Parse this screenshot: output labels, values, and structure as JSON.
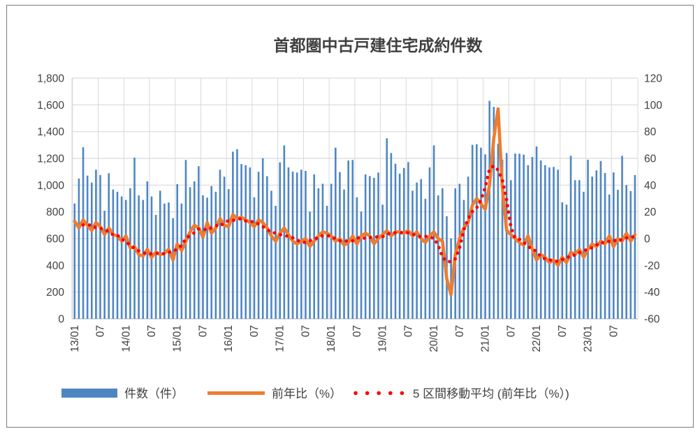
{
  "colors": {
    "bar": "#4E86C4",
    "line": "#ED7D31",
    "dots": "#FF0000",
    "axis_text": "#404040",
    "negative_tick": "#FF0000",
    "gridline": "#D9D9D9",
    "axis_line": "#BFBFBF",
    "border": "#898989",
    "background": "#FFFFFF"
  },
  "chart_data": {
    "type": "combo",
    "title": "首都圏中古戸建住宅成約件数",
    "grid": true,
    "legend_position": "bottom",
    "categories": [
      "13/01",
      "13/02",
      "13/03",
      "13/04",
      "13/05",
      "13/06",
      "13/07",
      "13/08",
      "13/09",
      "13/10",
      "13/11",
      "13/12",
      "14/01",
      "14/02",
      "14/03",
      "14/04",
      "14/05",
      "14/06",
      "14/07",
      "14/08",
      "14/09",
      "14/10",
      "14/11",
      "14/12",
      "15/01",
      "15/02",
      "15/03",
      "15/04",
      "15/05",
      "15/06",
      "15/07",
      "15/08",
      "15/09",
      "15/10",
      "15/11",
      "15/12",
      "16/01",
      "16/02",
      "16/03",
      "16/04",
      "16/05",
      "16/06",
      "16/07",
      "16/08",
      "16/09",
      "16/10",
      "16/11",
      "16/12",
      "17/01",
      "17/02",
      "17/03",
      "17/04",
      "17/05",
      "17/06",
      "17/07",
      "17/08",
      "17/09",
      "17/10",
      "17/11",
      "17/12",
      "18/01",
      "18/02",
      "18/03",
      "18/04",
      "18/05",
      "18/06",
      "18/07",
      "18/08",
      "18/09",
      "18/10",
      "18/11",
      "18/12",
      "19/01",
      "19/02",
      "19/03",
      "19/04",
      "19/05",
      "19/06",
      "19/07",
      "19/08",
      "19/09",
      "19/10",
      "19/11",
      "19/12",
      "20/01",
      "20/02",
      "20/03",
      "20/04",
      "20/05",
      "20/06",
      "20/07",
      "20/08",
      "20/09",
      "20/10",
      "20/11",
      "20/12",
      "21/01",
      "21/02",
      "21/03",
      "21/04",
      "21/05",
      "21/06",
      "21/07",
      "21/08",
      "21/09",
      "21/10",
      "21/11",
      "21/12",
      "22/01",
      "22/02",
      "22/03",
      "22/04",
      "22/05",
      "22/06",
      "22/07",
      "22/08",
      "22/09",
      "22/10",
      "22/11",
      "22/12",
      "23/01",
      "23/02",
      "23/03",
      "23/04",
      "23/05",
      "23/06",
      "23/07",
      "23/08",
      "23/09",
      "23/10",
      "23/11",
      "23/12"
    ],
    "x_tick_labels": [
      "13/01",
      "07",
      "14/01",
      "07",
      "15/01",
      "07",
      "16/01",
      "07",
      "17/01",
      "07",
      "18/01",
      "07",
      "19/01",
      "07",
      "20/01",
      "07",
      "21/01",
      "07",
      "22/01",
      "07",
      "23/01",
      "07"
    ],
    "x_tick_every": 6,
    "series": [
      {
        "name": "件数（件）",
        "type": "bar",
        "axis": "left",
        "values": [
          862,
          1049,
          1283,
          1071,
          1019,
          1115,
          1075,
          808,
          1089,
          967,
          950,
          915,
          889,
          976,
          1205,
          923,
          889,
          1028,
          915,
          777,
          958,
          862,
          870,
          753,
          1007,
          862,
          1188,
          984,
          1028,
          1141,
          923,
          906,
          993,
          950,
          1115,
          1063,
          970,
          1250,
          1268,
          1158,
          1149,
          1132,
          909,
          1100,
          1201,
          1066,
          958,
          845,
          1170,
          1297,
          1132,
          1101,
          1094,
          1115,
          1106,
          802,
          1080,
          976,
          1010,
          845,
          1010,
          1280,
          1097,
          967,
          1184,
          1188,
          909,
          802,
          1080,
          1068,
          1054,
          1094,
          854,
          1350,
          1240,
          1160,
          1085,
          1128,
          1172,
          958,
          1019,
          1045,
          897,
          1132,
          1297,
          923,
          976,
          767,
          602,
          976,
          1010,
          889,
          1063,
          1301,
          1306,
          1280,
          1230,
          1630,
          1585,
          1310,
          1190,
          1240,
          1037,
          1236,
          1235,
          1228,
          1149,
          1210,
          1289,
          1184,
          1149,
          1132,
          1136,
          1115,
          871,
          854,
          1219,
          1037,
          1037,
          950,
          1190,
          1063,
          1110,
          1180,
          1090,
          930,
          1095,
          965,
          1219,
          1000,
          955,
          1075
        ]
      },
      {
        "name": "前年比（%）",
        "type": "line",
        "axis": "right",
        "values": [
          13,
          8,
          14,
          10,
          6,
          12,
          9,
          3,
          8,
          3,
          2,
          -2,
          2,
          -7,
          -6,
          -12,
          -13,
          -8,
          -14,
          -10,
          -12,
          -11,
          -8,
          -16,
          -4,
          -9,
          -2,
          5,
          10,
          8,
          1,
          12,
          4,
          8,
          15,
          10,
          9,
          18,
          15,
          16,
          14,
          12,
          9,
          14,
          12,
          8,
          2,
          -2,
          4,
          8,
          3,
          -2,
          -4,
          -2,
          0,
          -6,
          -2,
          2,
          5,
          4,
          2,
          -2,
          0,
          -5,
          -3,
          2,
          -4,
          2,
          4,
          2,
          -4,
          0,
          3,
          6,
          2,
          5,
          5,
          4,
          6,
          2,
          5,
          0,
          -3,
          2,
          5,
          0,
          -2,
          -30,
          -42,
          -12,
          0,
          8,
          12,
          25,
          30,
          26,
          22,
          40,
          75,
          97,
          38,
          6,
          3,
          0,
          -3,
          -5,
          2,
          -8,
          -16,
          -12,
          -14,
          -18,
          -16,
          -20,
          -14,
          -18,
          -10,
          -12,
          -8,
          -14,
          -8,
          -4,
          -6,
          -2,
          -4,
          2,
          -6,
          0,
          -2,
          4,
          -2,
          3
        ]
      },
      {
        "name": "5 区間移動平均 (前年比（%）)",
        "type": "dotted-line",
        "axis": "right",
        "values": [
          null,
          null,
          10.2,
          10,
          10.2,
          8,
          7.6,
          7,
          5,
          2.8,
          2.6,
          -0.4,
          -2.2,
          -5,
          -7.2,
          -9.2,
          -10.6,
          -11.4,
          -11.4,
          -11,
          -11,
          -11.4,
          -10.2,
          -9.6,
          -7.8,
          -5.2,
          0,
          2.4,
          4.4,
          7.2,
          7,
          6.6,
          8,
          9.8,
          9.2,
          12,
          13.4,
          13.6,
          14.4,
          15,
          13.2,
          13,
          12.2,
          11,
          9,
          6.8,
          4.8,
          4,
          3,
          2.2,
          1.8,
          0.6,
          -1,
          -2.8,
          -2.8,
          -1.6,
          -0.2,
          0.6,
          2.2,
          2.2,
          1.8,
          -0.2,
          -1.6,
          -1.6,
          -2,
          -1.6,
          0.2,
          1.2,
          0,
          0.8,
          1,
          1.4,
          1.4,
          3.2,
          4.2,
          4.4,
          4.4,
          4.4,
          4.4,
          3.4,
          2,
          1.2,
          1.8,
          0.8,
          0.4,
          -5,
          -13.8,
          -17.2,
          -17.2,
          -15.2,
          -6.8,
          6.6,
          15,
          20.2,
          23,
          28.6,
          38.6,
          52,
          54.4,
          51.2,
          43.8,
          28.8,
          8.8,
          0.2,
          -0.6,
          -2.8,
          -6,
          -7.8,
          -9.6,
          -13.6,
          -15.2,
          -16,
          -16.4,
          -17.2,
          -15.6,
          -14.8,
          -12.4,
          -12.4,
          -10.4,
          -9.2,
          -8,
          -6.8,
          -4.8,
          -2.8,
          -3.2,
          -2,
          -2,
          -0.4,
          -1.2,
          0.6,
          0.8,
          1.7
        ]
      }
    ],
    "left_axis": {
      "min": 0,
      "max": 1800,
      "step": 200,
      "tick_labels": [
        "0",
        "200",
        "400",
        "600",
        "800",
        "1,000",
        "1,200",
        "1,400",
        "1,600",
        "1,800"
      ]
    },
    "right_axis": {
      "min": -60,
      "max": 120,
      "step": 20,
      "tick_labels": [
        "-60",
        "-40",
        "-20",
        "0",
        "20",
        "40",
        "60",
        "80",
        "100",
        "120"
      ]
    }
  }
}
